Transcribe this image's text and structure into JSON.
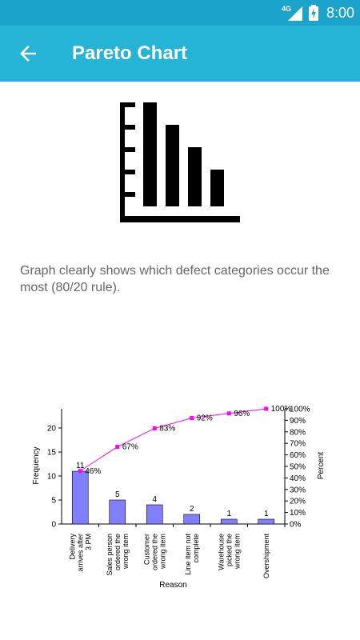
{
  "status_bar": {
    "network": "4G",
    "time": "8:00"
  },
  "app_bar": {
    "title": "Pareto Chart"
  },
  "hero": {
    "icon": "pareto-chart-icon"
  },
  "description": "Graph clearly shows which defect categories occur the most (80/20 rule).",
  "colors": {
    "app_bar": "#25b3d6",
    "status_bar": "#1ba3cc",
    "bar_fill": "#8080ff",
    "cumulative_line": "#ff00ff"
  },
  "chart_data": {
    "type": "bar",
    "xlabel": "Reason",
    "ylabel": "Frequency",
    "y2label": "Percent",
    "categories": [
      [
        "Delivery",
        "arrives after",
        "3 PM"
      ],
      [
        "Sales person",
        "ordered the",
        "wrong item"
      ],
      [
        "Customer",
        "ordered the",
        "wrong item"
      ],
      [
        "Line item not",
        "complete"
      ],
      [
        "Warehouse",
        "picked the",
        "wrong item"
      ],
      [
        "Overshipment"
      ]
    ],
    "values": [
      11,
      5,
      4,
      2,
      1,
      1
    ],
    "value_labels": [
      "11",
      "5",
      "4",
      "2",
      "1",
      "1"
    ],
    "cumulative": [
      46,
      67,
      83,
      92,
      96,
      100
    ],
    "cumulative_labels": [
      "46%",
      "67%",
      "83%",
      "92%",
      "96%",
      "100%"
    ],
    "ylim": [
      0,
      24
    ],
    "yticks": [
      "0",
      "5",
      "10",
      "15",
      "20"
    ],
    "y2lim": [
      0,
      100
    ],
    "y2ticks": [
      "0%",
      "10%",
      "20%",
      "30%",
      "40%",
      "50%",
      "60%",
      "70%",
      "80%",
      "90%",
      "100%"
    ],
    "grid": false
  }
}
